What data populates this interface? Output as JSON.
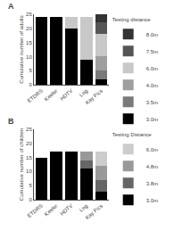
{
  "chart_data": [
    {
      "type": "bar",
      "title": "A",
      "ylabel": "Cumulative number of adults",
      "categories": [
        "ETDRS",
        "Keeler",
        "HDTV",
        "Log",
        "Kay Pics"
      ],
      "series": [
        {
          "name": "3.0m",
          "color": "#000000",
          "values": [
            24,
            24,
            20,
            9,
            2
          ]
        },
        {
          "name": "3.5m",
          "color": "#7a7a7a",
          "values": [
            0,
            0,
            0,
            0,
            3
          ]
        },
        {
          "name": "4.0m",
          "color": "#9e9e9e",
          "values": [
            0,
            0,
            0,
            0,
            5
          ]
        },
        {
          "name": "6.0m",
          "color": "#c8c8c8",
          "values": [
            0,
            0,
            4,
            15,
            8
          ]
        },
        {
          "name": "7.5m",
          "color": "#555555",
          "values": [
            0,
            0,
            0,
            0,
            4
          ]
        },
        {
          "name": "8.0m",
          "color": "#333333",
          "values": [
            0,
            0,
            0,
            0,
            3
          ]
        }
      ],
      "stacked": true,
      "ylim": [
        0,
        25
      ],
      "yticks": [
        0,
        5,
        10,
        15,
        20,
        25
      ],
      "legend_title": "Testing distance",
      "legend": "right",
      "grid": false
    },
    {
      "type": "bar",
      "title": "B",
      "ylabel": "Cumulative number of children",
      "categories": [
        "ETDRS",
        "Keeler",
        "HDTV",
        "Log",
        "Kay Pics"
      ],
      "series": [
        {
          "name": "3.0m",
          "color": "#000000",
          "values": [
            15,
            17,
            17,
            11,
            3
          ]
        },
        {
          "name": "3.8m",
          "color": "#666666",
          "values": [
            0,
            0,
            0,
            3,
            4
          ]
        },
        {
          "name": "4.8m",
          "color": "#999999",
          "values": [
            0,
            0,
            0,
            3,
            5
          ]
        },
        {
          "name": "6.0m",
          "color": "#cccccc",
          "values": [
            0,
            0,
            0,
            0,
            5
          ]
        }
      ],
      "stacked": true,
      "ylim": [
        0,
        25
      ],
      "yticks": [
        0,
        5,
        10,
        15,
        20,
        25
      ],
      "legend_title": "Testing Distance",
      "legend": "right",
      "grid": false
    }
  ]
}
